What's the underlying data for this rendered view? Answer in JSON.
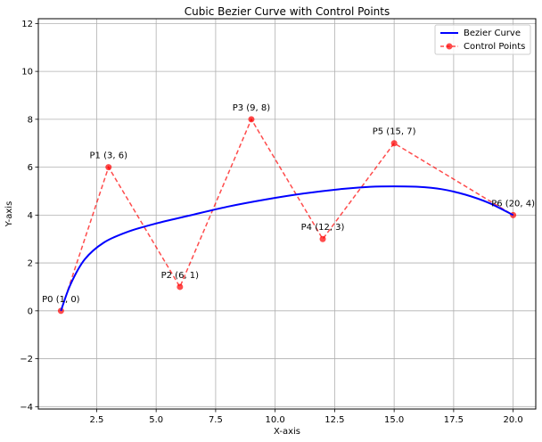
{
  "chart_data": {
    "type": "line",
    "title": "Cubic Bezier Curve with Control Points",
    "xlabel": "X-axis",
    "ylabel": "Y-axis",
    "xlim": [
      0.05,
      20.95
    ],
    "ylim": [
      -4.1,
      12.2
    ],
    "x_ticks": [
      2.5,
      5.0,
      7.5,
      10.0,
      12.5,
      15.0,
      17.5,
      20.0
    ],
    "x_tick_labels": [
      "2.5",
      "5.0",
      "7.5",
      "10.0",
      "12.5",
      "15.0",
      "17.5",
      "20.0"
    ],
    "y_ticks": [
      -4,
      -2,
      0,
      2,
      4,
      6,
      8,
      10,
      12
    ],
    "y_tick_labels": [
      "−4",
      "−2",
      "0",
      "2",
      "4",
      "6",
      "8",
      "10",
      "12"
    ],
    "grid": true,
    "legend_position": "top-right",
    "series": [
      {
        "name": "Bezier Curve",
        "color": "#0000ff",
        "style": "solid",
        "x": [
          1.0,
          1.4,
          2.0,
          2.8,
          3.8,
          5.0,
          6.4,
          8.0,
          9.6,
          11.2,
          12.7,
          14.0,
          15.0,
          16.0,
          17.0,
          18.0,
          19.0,
          20.0
        ],
        "y": [
          0.0,
          1.1,
          2.15,
          2.85,
          3.3,
          3.65,
          3.98,
          4.35,
          4.65,
          4.9,
          5.08,
          5.18,
          5.2,
          5.18,
          5.08,
          4.85,
          4.5,
          4.0
        ]
      },
      {
        "name": "Control Points",
        "color": "#ff0000",
        "style": "dashed",
        "marker": "circle",
        "x": [
          1,
          3,
          6,
          9,
          12,
          15,
          20
        ],
        "y": [
          0,
          6,
          1,
          8,
          3,
          7,
          4
        ]
      }
    ],
    "annotations": [
      {
        "text": "P0 (1, 0)",
        "x": 1,
        "y": 0
      },
      {
        "text": "P1 (3, 6)",
        "x": 3,
        "y": 6
      },
      {
        "text": "P2 (6, 1)",
        "x": 6,
        "y": 1
      },
      {
        "text": "P3 (9, 8)",
        "x": 9,
        "y": 8
      },
      {
        "text": "P4 (12, 3)",
        "x": 12,
        "y": 3
      },
      {
        "text": "P5 (15, 7)",
        "x": 15,
        "y": 7
      },
      {
        "text": "P6 (20, 4)",
        "x": 20,
        "y": 4
      }
    ]
  }
}
